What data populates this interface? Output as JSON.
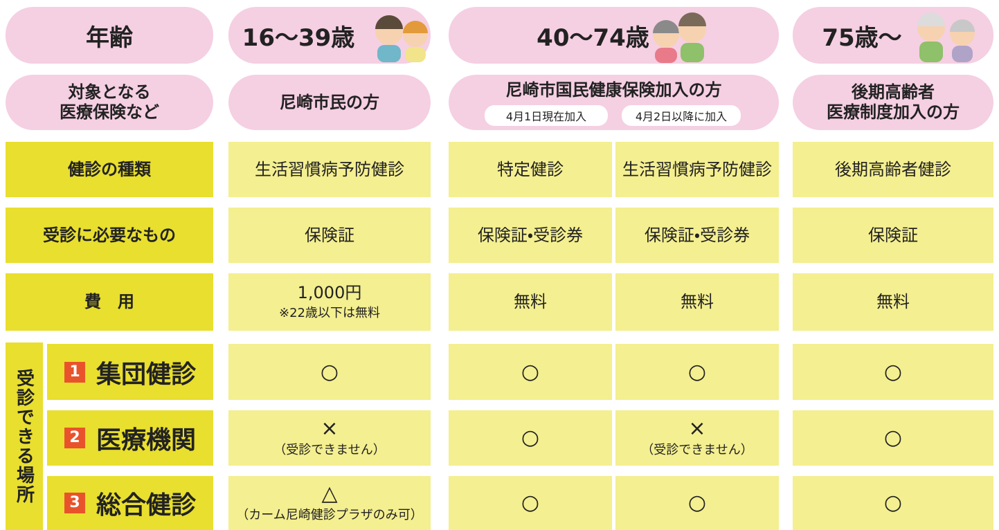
{
  "header": {
    "age_label": "年齢",
    "age_groups": [
      "16〜39歳",
      "40〜74歳",
      "75歳〜"
    ]
  },
  "insurance": {
    "label": [
      "対象となる",
      "医療保険など"
    ],
    "groups": [
      {
        "lines": [
          "尼崎市民の方"
        ]
      },
      {
        "lines": [
          "尼崎市国民健康保険加入の方"
        ],
        "sub": [
          "4月1日現在加入",
          "4月2日以降に加入"
        ]
      },
      {
        "lines": [
          "後期高齢者",
          "医療制度加入の方"
        ]
      }
    ]
  },
  "rows": [
    {
      "label": "健診の種類",
      "cells": [
        {
          "main": "生活習慣病予防健診"
        },
        {
          "main": "特定健診"
        },
        {
          "main": "生活習慣病予防健診"
        },
        {
          "main": "後期高齢者健診"
        }
      ]
    },
    {
      "label": "受診に必要なもの",
      "cells": [
        {
          "main": "保険証"
        },
        {
          "main": "保険証・受診券"
        },
        {
          "main": "保険証・受診券"
        },
        {
          "main": "保険証"
        }
      ]
    },
    {
      "label": "費　用",
      "cells": [
        {
          "main": "1,000円",
          "note": "※22歳以下は無料"
        },
        {
          "main": "無料"
        },
        {
          "main": "無料"
        },
        {
          "main": "無料"
        }
      ]
    }
  ],
  "places": {
    "label": "受診できる場所",
    "rows": [
      {
        "number": "1",
        "label": "集団健診",
        "cells": [
          {
            "main": "○"
          },
          {
            "main": "○"
          },
          {
            "main": "○"
          },
          {
            "main": "○"
          }
        ]
      },
      {
        "number": "2",
        "label": "医療機関",
        "cells": [
          {
            "main": "×",
            "note": "（受診できません）"
          },
          {
            "main": "○"
          },
          {
            "main": "×",
            "note": "（受診できません）"
          },
          {
            "main": "○"
          }
        ]
      },
      {
        "number": "3",
        "label": "総合健診",
        "cells": [
          {
            "main": "△",
            "note": "（カーム尼崎健診プラザのみ可）"
          },
          {
            "main": "○"
          },
          {
            "main": "○"
          },
          {
            "main": "○"
          }
        ]
      }
    ]
  }
}
